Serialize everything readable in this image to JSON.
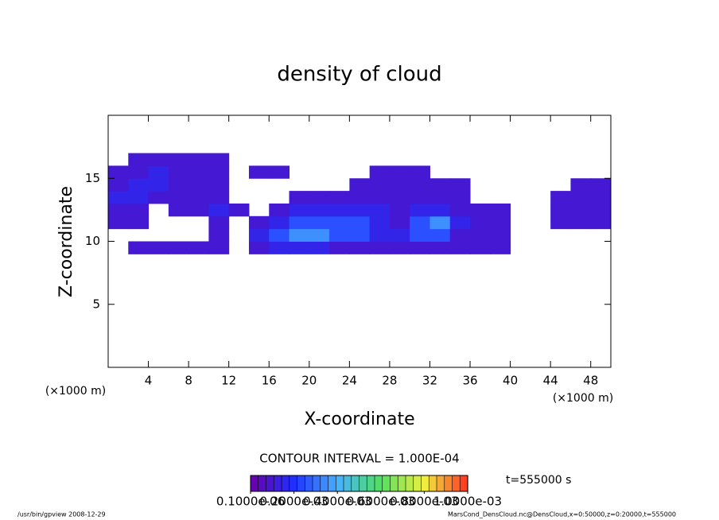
{
  "chart_data": {
    "type": "heatmap",
    "title": "density of cloud",
    "xlabel": "X-coordinate",
    "ylabel": "Z-coordinate",
    "xunit": "(×1000 m)",
    "yunit": "(×1000 m)",
    "contour_interval": "CONTOUR INTERVAL = 1.000E-04",
    "time_label": "t=555000 s",
    "footer_left": "/usr/bin/gpview  2008-12-29",
    "footer_right": "MarsCond_DensCloud.nc@DensCloud,x=0:50000,z=0:20000,t=555000",
    "xlim": [
      0,
      50
    ],
    "xticks": [
      4,
      8,
      12,
      16,
      20,
      24,
      28,
      32,
      36,
      40,
      44,
      48
    ],
    "ylim": [
      0,
      20
    ],
    "yticks": [
      5,
      10,
      15
    ],
    "x": [
      1,
      3,
      5,
      7,
      9,
      11,
      13,
      15,
      17,
      19,
      21,
      23,
      25,
      27,
      29,
      31,
      33,
      35,
      37,
      39,
      41,
      43,
      45,
      47,
      49
    ],
    "z": [
      9.5,
      10.5,
      11.5,
      12.5,
      13.5,
      14.5,
      15.5,
      16.5
    ],
    "values": [
      [
        0,
        5e-05,
        5e-05,
        5e-05,
        5e-05,
        5e-05,
        0,
        5e-05,
        0.0001,
        0.0001,
        0.0001,
        5e-05,
        5e-05,
        5e-05,
        5e-05,
        5e-05,
        5e-05,
        5e-05,
        5e-05,
        5e-05,
        0,
        0,
        0,
        0,
        0
      ],
      [
        0,
        0,
        0,
        0,
        0,
        5e-05,
        0,
        0.0001,
        0.0002,
        0.0003,
        0.0003,
        0.0002,
        0.0002,
        0.0001,
        0.0001,
        0.0002,
        0.0002,
        5e-05,
        5e-05,
        5e-05,
        0,
        0,
        0,
        0,
        0
      ],
      [
        5e-05,
        5e-05,
        0,
        0,
        0,
        5e-05,
        0,
        5e-05,
        0.0001,
        0.0002,
        0.0002,
        0.0002,
        0.0002,
        0.0001,
        5e-05,
        0.0002,
        0.0003,
        0.0001,
        5e-05,
        5e-05,
        0,
        0,
        5e-05,
        5e-05,
        5e-05
      ],
      [
        5e-05,
        5e-05,
        0,
        5e-05,
        5e-05,
        0.0001,
        5e-05,
        0,
        5e-05,
        0.0001,
        0.0001,
        0.0001,
        0.0001,
        0.0001,
        5e-05,
        0.0001,
        0.0001,
        5e-05,
        5e-05,
        5e-05,
        0,
        0,
        5e-05,
        5e-05,
        5e-05
      ],
      [
        0.0001,
        0.0001,
        5e-05,
        5e-05,
        5e-05,
        5e-05,
        0,
        0,
        0,
        5e-05,
        5e-05,
        5e-05,
        5e-05,
        5e-05,
        5e-05,
        5e-05,
        5e-05,
        5e-05,
        0,
        0,
        0,
        0,
        5e-05,
        5e-05,
        5e-05
      ],
      [
        5e-05,
        0.0001,
        0.0001,
        5e-05,
        5e-05,
        5e-05,
        0,
        0,
        0,
        0,
        0,
        0,
        5e-05,
        5e-05,
        5e-05,
        5e-05,
        5e-05,
        5e-05,
        0,
        0,
        0,
        0,
        0,
        5e-05,
        5e-05
      ],
      [
        5e-05,
        5e-05,
        0.0001,
        5e-05,
        5e-05,
        5e-05,
        0,
        5e-05,
        5e-05,
        0,
        0,
        0,
        0,
        5e-05,
        5e-05,
        5e-05,
        0,
        0,
        0,
        0,
        0,
        0,
        0,
        0,
        0
      ],
      [
        0,
        5e-05,
        5e-05,
        5e-05,
        5e-05,
        5e-05,
        0,
        0,
        0,
        0,
        0,
        0,
        0,
        0,
        0,
        0,
        0,
        0,
        0,
        0,
        0,
        0,
        0,
        0,
        0
      ]
    ],
    "colormap": [
      "#6a00a8",
      "#2030ff",
      "#48b0ff",
      "#50e060",
      "#f0f040",
      "#ff3020"
    ],
    "clim": [
      0,
      0.001
    ],
    "colorbar_ticks": [
      {
        "value": 1e-07,
        "label": "0.1000e-06"
      },
      {
        "value": 0.0002,
        "label": "0.2000e-03"
      },
      {
        "value": 0.0004,
        "label": "0.4000e-03"
      },
      {
        "value": 0.0006,
        "label": "0.6000e-03"
      },
      {
        "value": 0.0008,
        "label": "0.8000e-03"
      },
      {
        "value": 0.001,
        "label": "1.0000e-03"
      }
    ]
  }
}
